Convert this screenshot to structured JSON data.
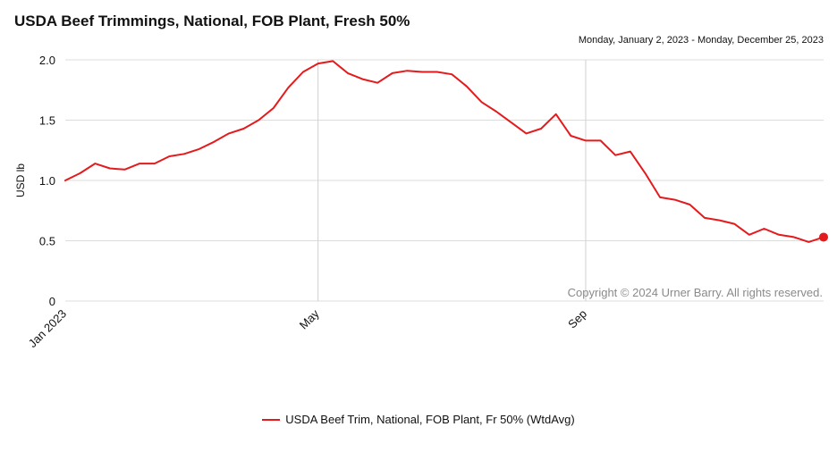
{
  "header": {
    "title": "USDA Beef Trimmings, National, FOB Plant, Fresh 50%",
    "date_range": "Monday, January 2, 2023 - Monday, December 25, 2023"
  },
  "copyright": "Copyright © 2024 Urner Barry. All rights reserved.",
  "colors": {
    "series": "#e41a1c"
  },
  "chart_data": {
    "type": "line",
    "title": "USDA Beef Trimmings, National, FOB Plant, Fresh 50%",
    "xlabel": "",
    "ylabel": "USD lb",
    "ylim": [
      0,
      2.0
    ],
    "y_ticks": [
      {
        "value": 0,
        "label": "0"
      },
      {
        "value": 0.5,
        "label": "0.5"
      },
      {
        "value": 1.0,
        "label": "1.0"
      },
      {
        "value": 1.5,
        "label": "1.5"
      },
      {
        "value": 2.0,
        "label": "2.0"
      }
    ],
    "x_ticks": [
      {
        "week": 0,
        "label": "Jan 2023"
      },
      {
        "week": 17,
        "label": "May"
      },
      {
        "week": 35,
        "label": "Sep"
      }
    ],
    "grid": true,
    "legend_position": "bottom-center",
    "series": [
      {
        "name": "USDA Beef Trim, National, FOB Plant, Fr 50% (WtdAvg)",
        "x": [
          0,
          1,
          2,
          3,
          4,
          5,
          6,
          7,
          8,
          9,
          10,
          11,
          12,
          13,
          14,
          15,
          16,
          17,
          18,
          19,
          20,
          21,
          22,
          23,
          24,
          25,
          26,
          27,
          28,
          29,
          30,
          31,
          32,
          33,
          34,
          35,
          36,
          37,
          38,
          39,
          40,
          41,
          42,
          43,
          44,
          45,
          46,
          47,
          48,
          49,
          50,
          51
        ],
        "values": [
          1.0,
          1.06,
          1.14,
          1.1,
          1.09,
          1.14,
          1.14,
          1.2,
          1.22,
          1.26,
          1.32,
          1.39,
          1.43,
          1.5,
          1.6,
          1.77,
          1.9,
          1.97,
          1.99,
          1.89,
          1.84,
          1.81,
          1.89,
          1.91,
          1.9,
          1.9,
          1.88,
          1.78,
          1.65,
          1.57,
          1.48,
          1.39,
          1.43,
          1.55,
          1.37,
          1.33,
          1.33,
          1.21,
          1.24,
          1.06,
          0.86,
          0.84,
          0.8,
          0.69,
          0.67,
          0.64,
          0.55,
          0.6,
          0.55,
          0.53,
          0.49,
          0.53
        ]
      }
    ]
  }
}
